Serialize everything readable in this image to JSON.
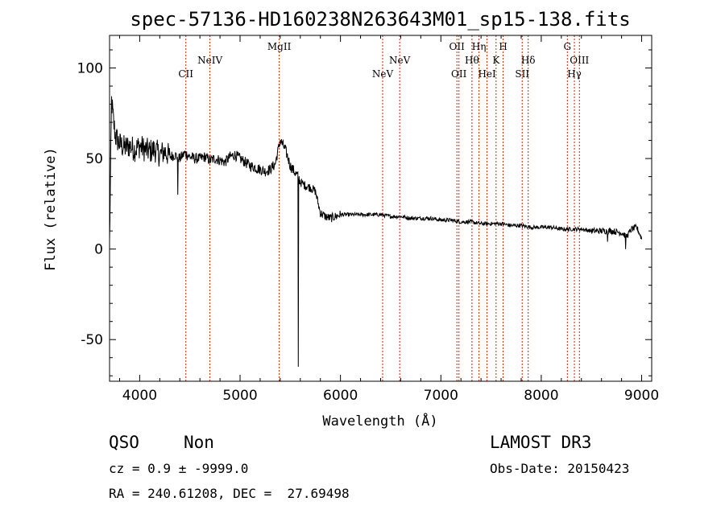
{
  "chart_data": {
    "type": "line",
    "title": "spec-57136-HD160238N263643M01_sp15-138.fits",
    "xlabel": "Wavelength (Å)",
    "ylabel": "Flux (relative)",
    "xlim": [
      3700,
      9100
    ],
    "ylim": [
      -73,
      118
    ],
    "xticks": [
      4000,
      5000,
      6000,
      7000,
      8000,
      9000
    ],
    "yticks": [
      -50,
      0,
      50,
      100
    ],
    "series": [
      {
        "name": "spectrum",
        "x": [
          3700,
          3720,
          3740,
          3760,
          3800,
          3850,
          3900,
          3950,
          4000,
          4050,
          4100,
          4150,
          4200,
          4250,
          4300,
          4350,
          4400,
          4450,
          4500,
          4550,
          4600,
          4650,
          4700,
          4750,
          4800,
          4850,
          4900,
          4950,
          5000,
          5050,
          5100,
          5150,
          5200,
          5250,
          5300,
          5350,
          5380,
          5400,
          5420,
          5450,
          5480,
          5500,
          5550,
          5580,
          5600,
          5650,
          5700,
          5750,
          5800,
          5850,
          5900,
          5950,
          6000,
          6100,
          6200,
          6300,
          6400,
          6500,
          6600,
          6700,
          6800,
          6900,
          7000,
          7100,
          7200,
          7300,
          7400,
          7500,
          7600,
          7700,
          7800,
          7900,
          8000,
          8100,
          8200,
          8300,
          8400,
          8500,
          8600,
          8700,
          8800,
          8850,
          8900,
          8950,
          9000
        ],
        "y": [
          3,
          82,
          70,
          62,
          58,
          56,
          57,
          55,
          57,
          55,
          54,
          55,
          52,
          54,
          51,
          52,
          50,
          53,
          51,
          50,
          50,
          51,
          49,
          50,
          49,
          48,
          51,
          52,
          50,
          48,
          46,
          45,
          44,
          43,
          44,
          47,
          55,
          60,
          58,
          55,
          50,
          46,
          42,
          40,
          37,
          35,
          34,
          32,
          20,
          18,
          17,
          18,
          19,
          19,
          19,
          19,
          19,
          18,
          18,
          17,
          17,
          17,
          16,
          16,
          15,
          15,
          14,
          14,
          14,
          13,
          13,
          12,
          12,
          12,
          11,
          11,
          11,
          10,
          10,
          10,
          9,
          7,
          11,
          12,
          6
        ]
      }
    ],
    "dips": [
      {
        "x": 4380,
        "y": 30
      },
      {
        "x": 5580,
        "y": -65
      },
      {
        "x": 8840,
        "y": 0
      },
      {
        "x": 8660,
        "y": 4
      }
    ],
    "line_markers": [
      {
        "label": "CII",
        "wavelength": 4460,
        "row": 3
      },
      {
        "label": "NeIV",
        "wavelength": 4700,
        "row": 2
      },
      {
        "label": "MgII",
        "wavelength": 5390,
        "row": 1
      },
      {
        "label": "NeV",
        "wavelength": 6420,
        "row": 3
      },
      {
        "label": "NeV",
        "wavelength": 6590,
        "row": 2
      },
      {
        "label": "OII",
        "wavelength": 7160,
        "row": 1
      },
      {
        "label": "OII",
        "wavelength": 7180,
        "row": 3
      },
      {
        "label": "Hθ",
        "wavelength": 7310,
        "row": 2
      },
      {
        "label": "Hη",
        "wavelength": 7380,
        "row": 1
      },
      {
        "label": "HeI",
        "wavelength": 7460,
        "row": 3
      },
      {
        "label": "K",
        "wavelength": 7550,
        "row": 2
      },
      {
        "label": "H",
        "wavelength": 7620,
        "row": 1
      },
      {
        "label": "SII",
        "wavelength": 7810,
        "row": 3
      },
      {
        "label": "Hδ",
        "wavelength": 7870,
        "row": 2
      },
      {
        "label": "G",
        "wavelength": 8260,
        "row": 1
      },
      {
        "label": "Hγ",
        "wavelength": 8330,
        "row": 3
      },
      {
        "label": "OIII",
        "wavelength": 8380,
        "row": 2
      }
    ]
  },
  "footer": {
    "class_label": "QSO",
    "subclass": "Non",
    "survey": "LAMOST DR3",
    "cz": "cz = 0.9 ± -9999.0",
    "obs_date": "Obs-Date: 20150423",
    "coords": "RA = 240.61208, DEC =  27.69498"
  },
  "colors": {
    "axis": "#000000",
    "spectrum": "#000000",
    "line_marker": "#cc2200",
    "background": "#ffffff"
  }
}
